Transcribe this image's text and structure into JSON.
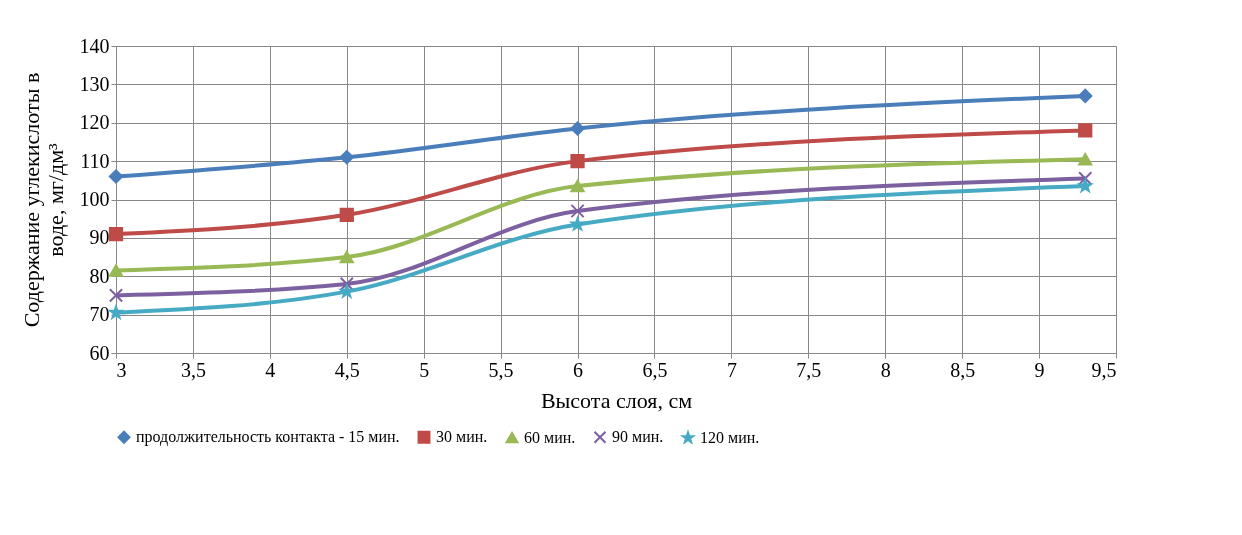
{
  "chart_data": {
    "type": "line",
    "xlabel": "Высота слоя, см",
    "ylabel": "Содержание углекислоты в\nводе, мг/дм³",
    "x": [
      3,
      4.5,
      6,
      9.3
    ],
    "series": [
      {
        "name": "продолжительность контакта - 15 мин.",
        "color": "#4a7ebb",
        "marker": "diamond",
        "values": [
          106,
          111,
          118.5,
          127
        ]
      },
      {
        "name": "30 мин.",
        "color": "#be4b48",
        "marker": "square",
        "values": [
          91,
          96,
          110,
          118
        ]
      },
      {
        "name": "60 мин.",
        "color": "#98b954",
        "marker": "triangle",
        "values": [
          81.5,
          85,
          103.5,
          110.5
        ]
      },
      {
        "name": "90 мин.",
        "color": "#7d60a0",
        "marker": "cross",
        "values": [
          75,
          78,
          97,
          105.5
        ]
      },
      {
        "name": "120 мин.",
        "color": "#46aac5",
        "marker": "star",
        "values": [
          70.5,
          76,
          93.5,
          103.5
        ]
      }
    ],
    "xlim": [
      3,
      9.5
    ],
    "xticks": [
      3,
      {
        "value": 3.5,
        "label": "3,5"
      },
      4,
      {
        "value": 4.5,
        "label": "4,5"
      },
      5,
      {
        "value": 5.5,
        "label": "5,5"
      },
      6,
      {
        "value": 6.5,
        "label": "6,5"
      },
      7,
      {
        "value": 7.5,
        "label": "7,5"
      },
      8,
      {
        "value": 8.5,
        "label": "8,5"
      },
      9,
      {
        "value": 9.5,
        "label": "9,5"
      }
    ],
    "ylim": [
      60,
      140
    ],
    "yticks": [
      60,
      70,
      80,
      90,
      100,
      110,
      120,
      130,
      140
    ],
    "grid": true,
    "legend": "bottom",
    "line_style": "solid"
  }
}
